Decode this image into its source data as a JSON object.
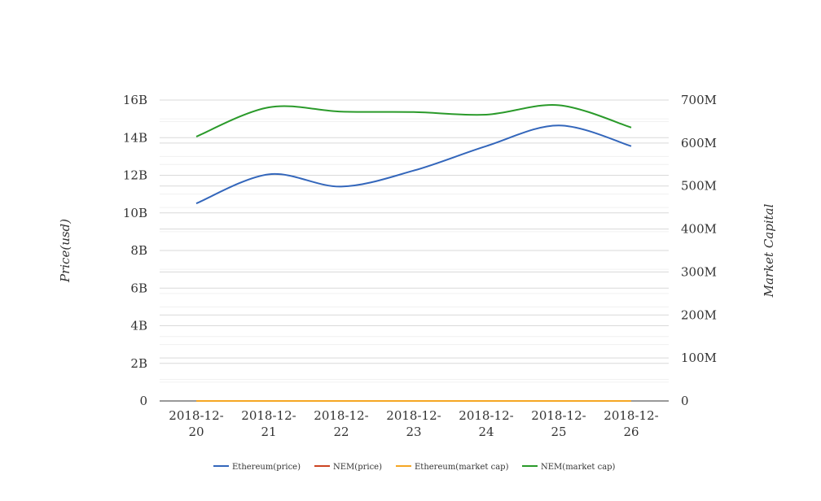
{
  "chart_data": {
    "type": "line",
    "categories": [
      [
        "2018-12-",
        "20"
      ],
      [
        "2018-12-",
        "21"
      ],
      [
        "2018-12-",
        "22"
      ],
      [
        "2018-12-",
        "23"
      ],
      [
        "2018-12-",
        "24"
      ],
      [
        "2018-12-",
        "25"
      ],
      [
        "2018-12-",
        "26"
      ]
    ],
    "y_left": {
      "label": "Price(usd)",
      "ylim": [
        0,
        16000000000
      ],
      "ticks": [
        0,
        2000000000,
        4000000000,
        6000000000,
        8000000000,
        10000000000,
        12000000000,
        14000000000,
        16000000000
      ],
      "tick_labels": [
        "0",
        "2B",
        "4B",
        "6B",
        "8B",
        "10B",
        "12B",
        "14B",
        "16B"
      ]
    },
    "y_right": {
      "label": "Market Capital",
      "ylim": [
        0,
        700000000
      ],
      "ticks": [
        0,
        100000000,
        200000000,
        300000000,
        400000000,
        500000000,
        600000000,
        700000000
      ],
      "tick_labels": [
        "0",
        "100M",
        "200M",
        "300M",
        "400M",
        "500M",
        "600M",
        "700M"
      ]
    },
    "grid": true,
    "legend_position": "bottom-center",
    "series": [
      {
        "name": "Ethereum(price)",
        "axis": "left",
        "color": "#3366bb",
        "values": [
          10500000000,
          12050000000,
          11400000000,
          12250000000,
          13550000000,
          14650000000,
          13550000000
        ]
      },
      {
        "name": "NEM(price)",
        "axis": "left",
        "color": "#cc4422",
        "values": [
          0,
          0,
          0,
          0,
          0,
          0,
          0
        ]
      },
      {
        "name": "Ethereum(market cap)",
        "axis": "right",
        "color": "#f5a623",
        "values": [
          0,
          0,
          0,
          0,
          0,
          0,
          0
        ]
      },
      {
        "name": "NEM(market cap)",
        "axis": "right",
        "color": "#2a9a2a",
        "values": [
          615000000,
          683000000,
          673000000,
          672000000,
          666000000,
          688000000,
          636000000
        ]
      }
    ]
  }
}
